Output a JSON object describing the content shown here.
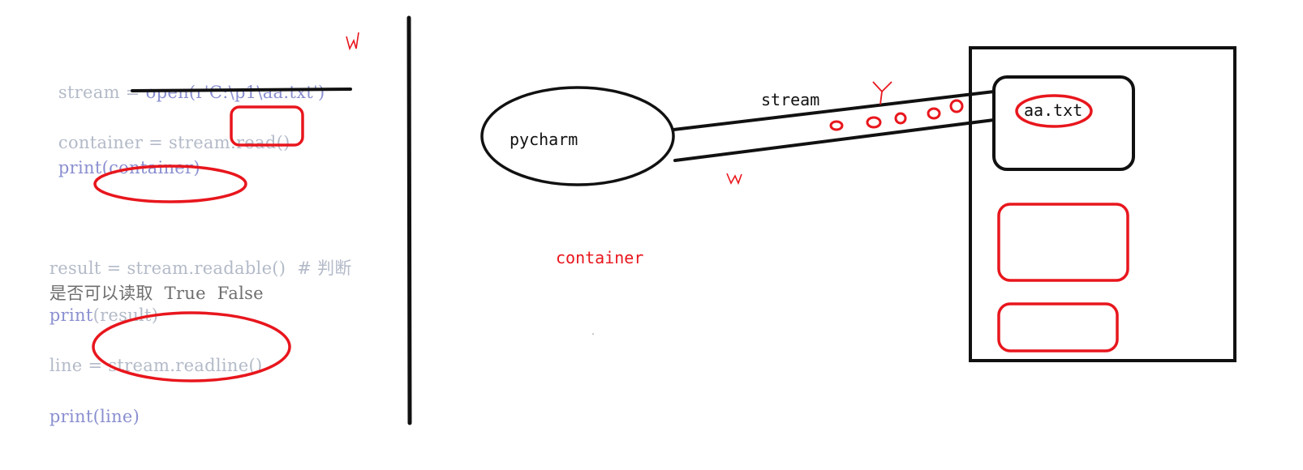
{
  "code": {
    "line1_var": "stream = ",
    "line1_fn": "open",
    "line1_args": "(r'C:\\p1\\aa.txt')",
    "line2_text": "container = stream.",
    "line2_call": "read()",
    "line3_fn": "print",
    "line3_args": "(container)",
    "line4_text": "result = stream.readable()  # 判断",
    "line5_text": "是否可以读取  True  False",
    "line6_fn": "print",
    "line6_args": "(result)",
    "line7_text": "line = ",
    "line7_call": "stream.readline()",
    "line8_fn": "print",
    "line8_args": "(line)"
  },
  "diagram": {
    "pycharm_label": "pycharm",
    "stream_label": "stream",
    "file_label": "aa.txt",
    "container_label": "container",
    "mark_w_top": "w",
    "mark_w_bottom": "w",
    "mark_r": "r"
  },
  "colors": {
    "annotation": "#e8161d",
    "ink": "#111111",
    "code": "#b3bac8",
    "keyword": "#8a8fd0"
  }
}
